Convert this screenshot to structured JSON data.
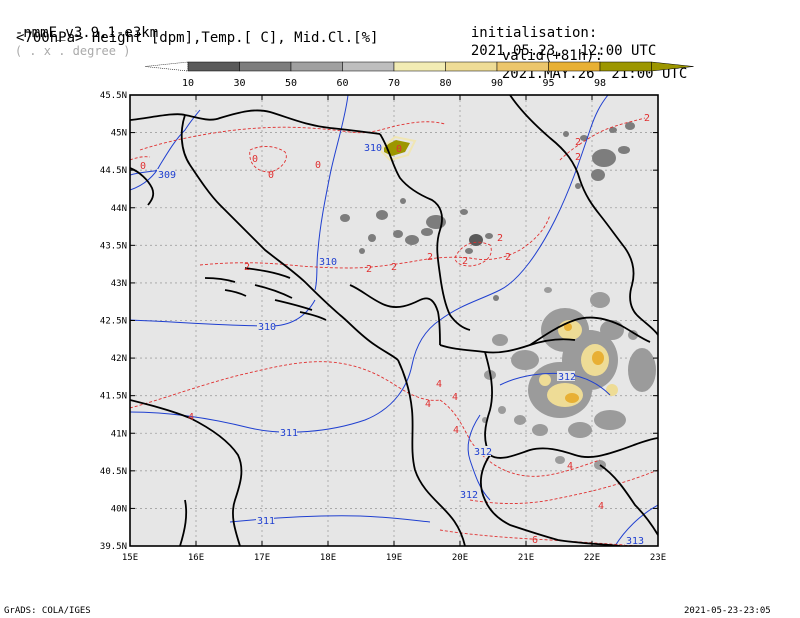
{
  "header": {
    "model": "-nmmE_v3.9.1-e3km",
    "units_note": "( . x . degree )",
    "fields": "<700hPa> Height [dpm],Temp.[ C], Mid.Cl.[%]",
    "init_label": "initialisation:",
    "init_value": "2021.05.23.  12:00 UTC",
    "valid_label": "valid(+81h):",
    "valid_value": "2021.MAY.26  21:00 UTC"
  },
  "colorbar": {
    "labels": [
      "10",
      "30",
      "50",
      "60",
      "70",
      "80",
      "90",
      "95",
      "98"
    ],
    "colors": [
      "#5a5a5a",
      "#7d7d7d",
      "#a0a0a0",
      "#bebebe",
      "#f2ecb4",
      "#eedc96",
      "#ecc66c",
      "#e8b034",
      "#9c9600"
    ]
  },
  "map": {
    "lat_labels": [
      "45.5N",
      "45N",
      "44.5N",
      "44N",
      "43.5N",
      "43N",
      "42.5N",
      "42N",
      "41.5N",
      "41N",
      "40.5N",
      "40N",
      "39.5N"
    ],
    "lon_labels": [
      "15E",
      "16E",
      "17E",
      "18E",
      "19E",
      "20E",
      "21E",
      "22E",
      "23E"
    ],
    "height_labels": [
      "310",
      "309",
      "310",
      "310",
      "311",
      "312",
      "312",
      "312",
      "313",
      "311"
    ],
    "temp_labels": [
      "0",
      "0",
      "0",
      "0",
      "0",
      "2",
      "2",
      "2",
      "2",
      "2",
      "2",
      "2",
      "2",
      "2",
      "2",
      "4",
      "4",
      "4",
      "4",
      "4",
      "4",
      "4",
      "6"
    ]
  },
  "footer": {
    "left": "GrADS: COLA/IGES",
    "right": "2021-05-23-23:05"
  }
}
